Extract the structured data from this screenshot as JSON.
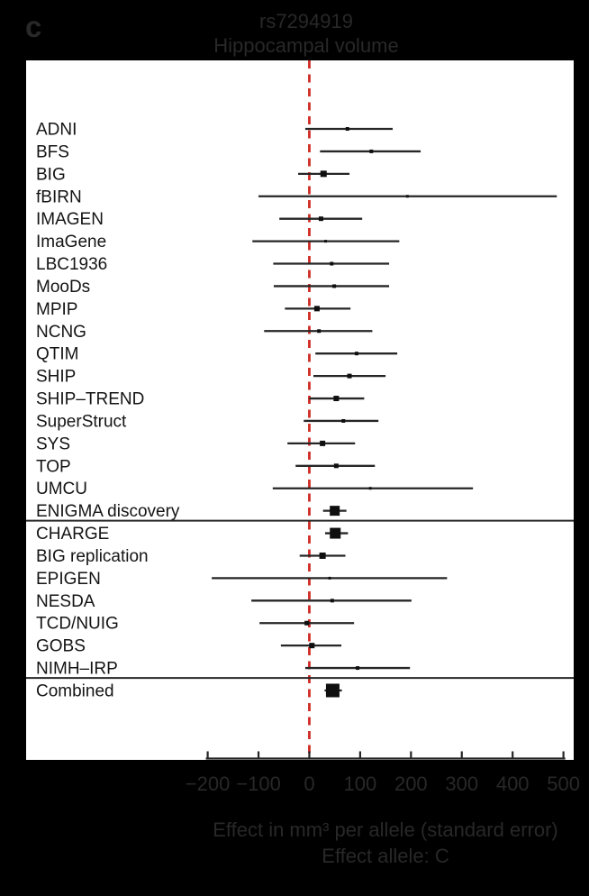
{
  "panel_label": "c",
  "colors": {
    "background": "#000000",
    "plot_bg": "#ffffff",
    "ink": "#262626",
    "marker": "#0f0f0f",
    "zero_line": "#cf2b24",
    "outer_text": "#282828",
    "label_text": "#141414"
  },
  "chart_data": {
    "type": "forest",
    "title": "rs7294919",
    "subtitle": "Hippocampal volume",
    "xlabel_line1": "Effect in mm³ per allele (standard error)",
    "xlabel_line2": "Effect allele: C",
    "xlim": [
      -200,
      500
    ],
    "zero_line": 0,
    "grid": false,
    "x_ticks": [
      {
        "value": -200,
        "label": "−200"
      },
      {
        "value": -100,
        "label": "−100"
      },
      {
        "value": 0,
        "label": "0"
      },
      {
        "value": 100,
        "label": "100"
      },
      {
        "value": 200,
        "label": "200"
      },
      {
        "value": 300,
        "label": "300"
      },
      {
        "value": 400,
        "label": "400"
      },
      {
        "value": 500,
        "label": "500"
      }
    ],
    "studies": [
      {
        "label": "ADNI",
        "effect": 75,
        "ci_low": -8,
        "ci_high": 164,
        "weight": 4
      },
      {
        "label": "BFS",
        "effect": 122,
        "ci_low": 21,
        "ci_high": 219,
        "weight": 4
      },
      {
        "label": "BIG",
        "effect": 28,
        "ci_low": -22,
        "ci_high": 79,
        "weight": 7
      },
      {
        "label": "fBIRN",
        "effect": 193,
        "ci_low": -100,
        "ci_high": 487,
        "weight": 3
      },
      {
        "label": "IMAGEN",
        "effect": 23,
        "ci_low": -59,
        "ci_high": 104,
        "weight": 5
      },
      {
        "label": "ImaGene",
        "effect": 32,
        "ci_low": -112,
        "ci_high": 177,
        "weight": 3
      },
      {
        "label": "LBC1936",
        "effect": 44,
        "ci_low": -71,
        "ci_high": 157,
        "weight": 4
      },
      {
        "label": "MooDs",
        "effect": 49,
        "ci_low": -70,
        "ci_high": 157,
        "weight": 4
      },
      {
        "label": "MPIP",
        "effect": 15,
        "ci_low": -48,
        "ci_high": 81,
        "weight": 6
      },
      {
        "label": "NCNG",
        "effect": 19,
        "ci_low": -89,
        "ci_high": 124,
        "weight": 4
      },
      {
        "label": "QTIM",
        "effect": 93,
        "ci_low": 12,
        "ci_high": 173,
        "weight": 4
      },
      {
        "label": "SHIP",
        "effect": 79,
        "ci_low": 8,
        "ci_high": 150,
        "weight": 5
      },
      {
        "label": "SHIP–TREND",
        "effect": 53,
        "ci_low": 0,
        "ci_high": 108,
        "weight": 6
      },
      {
        "label": "SuperStruct",
        "effect": 67,
        "ci_low": -11,
        "ci_high": 136,
        "weight": 4
      },
      {
        "label": "SYS",
        "effect": 26,
        "ci_low": -43,
        "ci_high": 90,
        "weight": 6
      },
      {
        "label": "TOP",
        "effect": 53,
        "ci_low": -27,
        "ci_high": 129,
        "weight": 5
      },
      {
        "label": "UMCU",
        "effect": 120,
        "ci_low": -72,
        "ci_high": 322,
        "weight": 3
      },
      {
        "label": "ENIGMA discovery",
        "effect": 50,
        "ci_low": 27,
        "ci_high": 73,
        "weight": 11
      },
      {
        "label": "CHARGE",
        "effect": 51,
        "ci_low": 31,
        "ci_high": 76,
        "weight": 12
      },
      {
        "label": "BIG replication",
        "effect": 26,
        "ci_low": -19,
        "ci_high": 71,
        "weight": 7
      },
      {
        "label": "EPIGEN",
        "effect": 40,
        "ci_low": -192,
        "ci_high": 271,
        "weight": 3
      },
      {
        "label": "NESDA",
        "effect": 45,
        "ci_low": -114,
        "ci_high": 201,
        "weight": 4
      },
      {
        "label": "TCD/NUIG",
        "effect": -5,
        "ci_low": -98,
        "ci_high": 88,
        "weight": 5
      },
      {
        "label": "GOBS",
        "effect": 5,
        "ci_low": -56,
        "ci_high": 63,
        "weight": 6
      },
      {
        "label": "NIMH–IRP",
        "effect": 95,
        "ci_low": -8,
        "ci_high": 198,
        "weight": 4
      },
      {
        "label": "Combined",
        "effect": 46,
        "ci_low": 30,
        "ci_high": 64,
        "weight": 15
      }
    ],
    "separator_after": [
      "ENIGMA discovery",
      "NIMH–IRP"
    ]
  }
}
